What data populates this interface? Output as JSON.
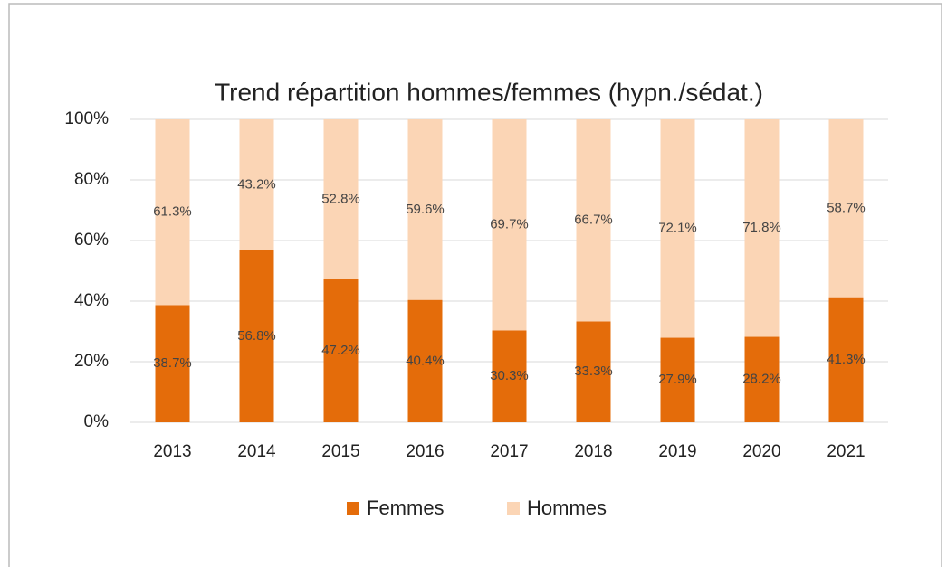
{
  "chart_data": {
    "type": "stacked_bar",
    "title": "Trend répartition hommes/femmes (hypn./sédat.)",
    "categories": [
      "2013",
      "2014",
      "2015",
      "2016",
      "2017",
      "2018",
      "2019",
      "2020",
      "2021"
    ],
    "series": [
      {
        "name": "Femmes",
        "color": "#e46c0a",
        "values": [
          38.7,
          56.8,
          47.2,
          40.4,
          30.3,
          33.3,
          27.9,
          28.2,
          41.3
        ],
        "value_labels": [
          "38.7%",
          "56.8%",
          "47.2%",
          "40.4%",
          "30.3%",
          "33.3%",
          "27.9%",
          "28.2%",
          "41.3%"
        ]
      },
      {
        "name": "Hommes",
        "color": "#fbd5b5",
        "values": [
          61.3,
          43.2,
          52.8,
          59.6,
          69.7,
          66.7,
          72.1,
          71.8,
          58.7
        ],
        "value_labels": [
          "61.3%",
          "43.2%",
          "52.8%",
          "59.6%",
          "69.7%",
          "66.7%",
          "72.1%",
          "71.8%",
          "58.7%"
        ]
      }
    ],
    "ylim": [
      0,
      100
    ],
    "yticks": [
      {
        "value": 0,
        "label": "0%"
      },
      {
        "value": 20,
        "label": "20%"
      },
      {
        "value": 40,
        "label": "40%"
      },
      {
        "value": 60,
        "label": "60%"
      },
      {
        "value": 80,
        "label": "80%"
      },
      {
        "value": 100,
        "label": "100%"
      }
    ],
    "grid": true,
    "legend": "bottom"
  }
}
